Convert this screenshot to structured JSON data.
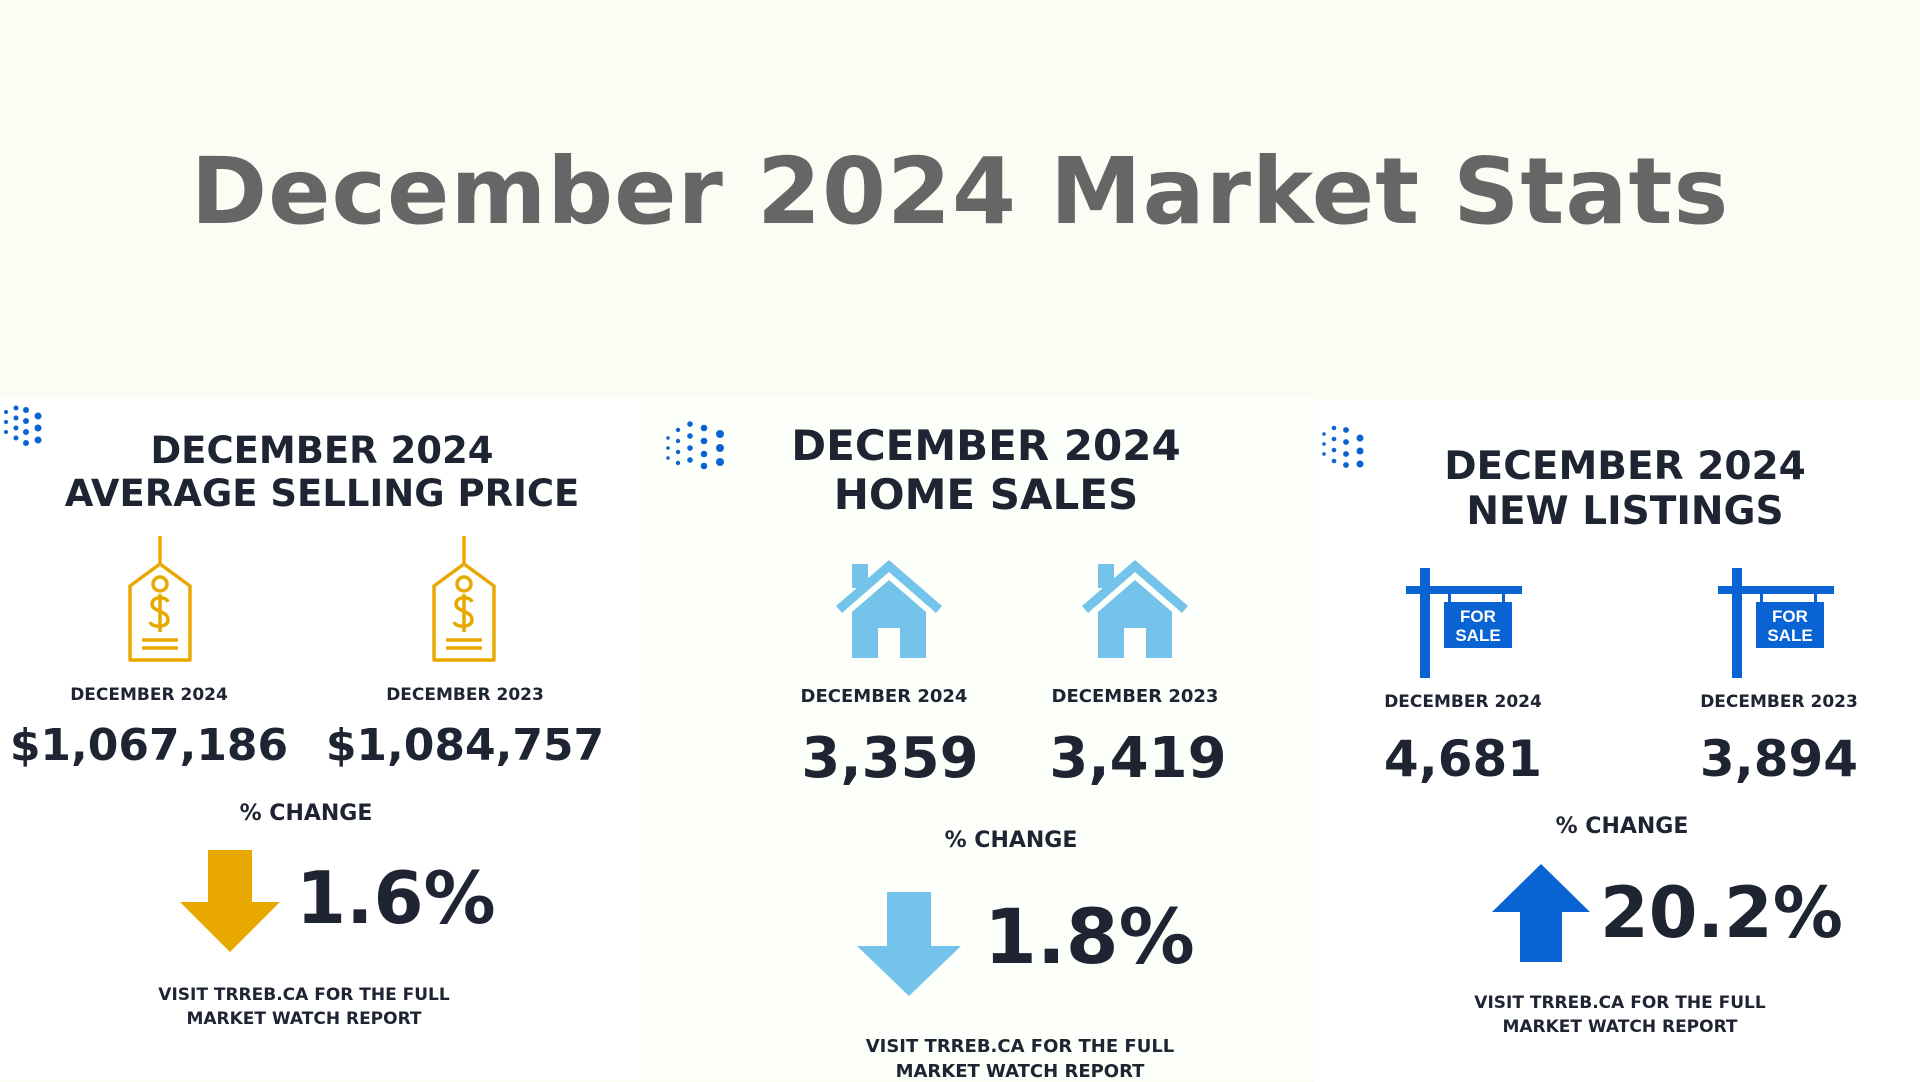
{
  "page_title": "December 2024 Market Stats",
  "colors": {
    "title_gray": "#666666",
    "text_dark": "#1f2433",
    "tag_gold": "#e9a800",
    "house_light_blue": "#74c3ea",
    "sign_blue": "#0a63d3"
  },
  "panels": [
    {
      "heading_line1": "DECEMBER 2024",
      "heading_line2": "AVERAGE SELLING PRICE",
      "icon": "price-tag-icon",
      "col1_label": "DECEMBER 2024",
      "col1_value": "$1,067,186",
      "col2_label": "DECEMBER 2023",
      "col2_value": "$1,084,757",
      "change_label": "% CHANGE",
      "change_direction": "down",
      "change_value": "1.6%",
      "footer_line1": "VISIT TRREB.CA FOR THE FULL",
      "footer_line2": "MARKET WATCH REPORT"
    },
    {
      "heading_line1": "DECEMBER 2024",
      "heading_line2": "HOME SALES",
      "icon": "house-icon",
      "col1_label": "DECEMBER 2024",
      "col1_value": "3,359",
      "col2_label": "DECEMBER 2023",
      "col2_value": "3,419",
      "change_label": "% CHANGE",
      "change_direction": "down",
      "change_value": "1.8%",
      "footer_line1": "VISIT TRREB.CA FOR THE FULL",
      "footer_line2": "MARKET WATCH REPORT"
    },
    {
      "heading_line1": "DECEMBER 2024",
      "heading_line2": "NEW LISTINGS",
      "icon": "for-sale-sign-icon",
      "sign_text_line1": "FOR",
      "sign_text_line2": "SALE",
      "col1_label": "DECEMBER 2024",
      "col1_value": "4,681",
      "col2_label": "DECEMBER 2023",
      "col2_value": "3,894",
      "change_label": "% CHANGE",
      "change_direction": "up",
      "change_value": "20.2%",
      "footer_line1": "VISIT TRREB.CA FOR THE FULL",
      "footer_line2": "MARKET WATCH REPORT"
    }
  ]
}
